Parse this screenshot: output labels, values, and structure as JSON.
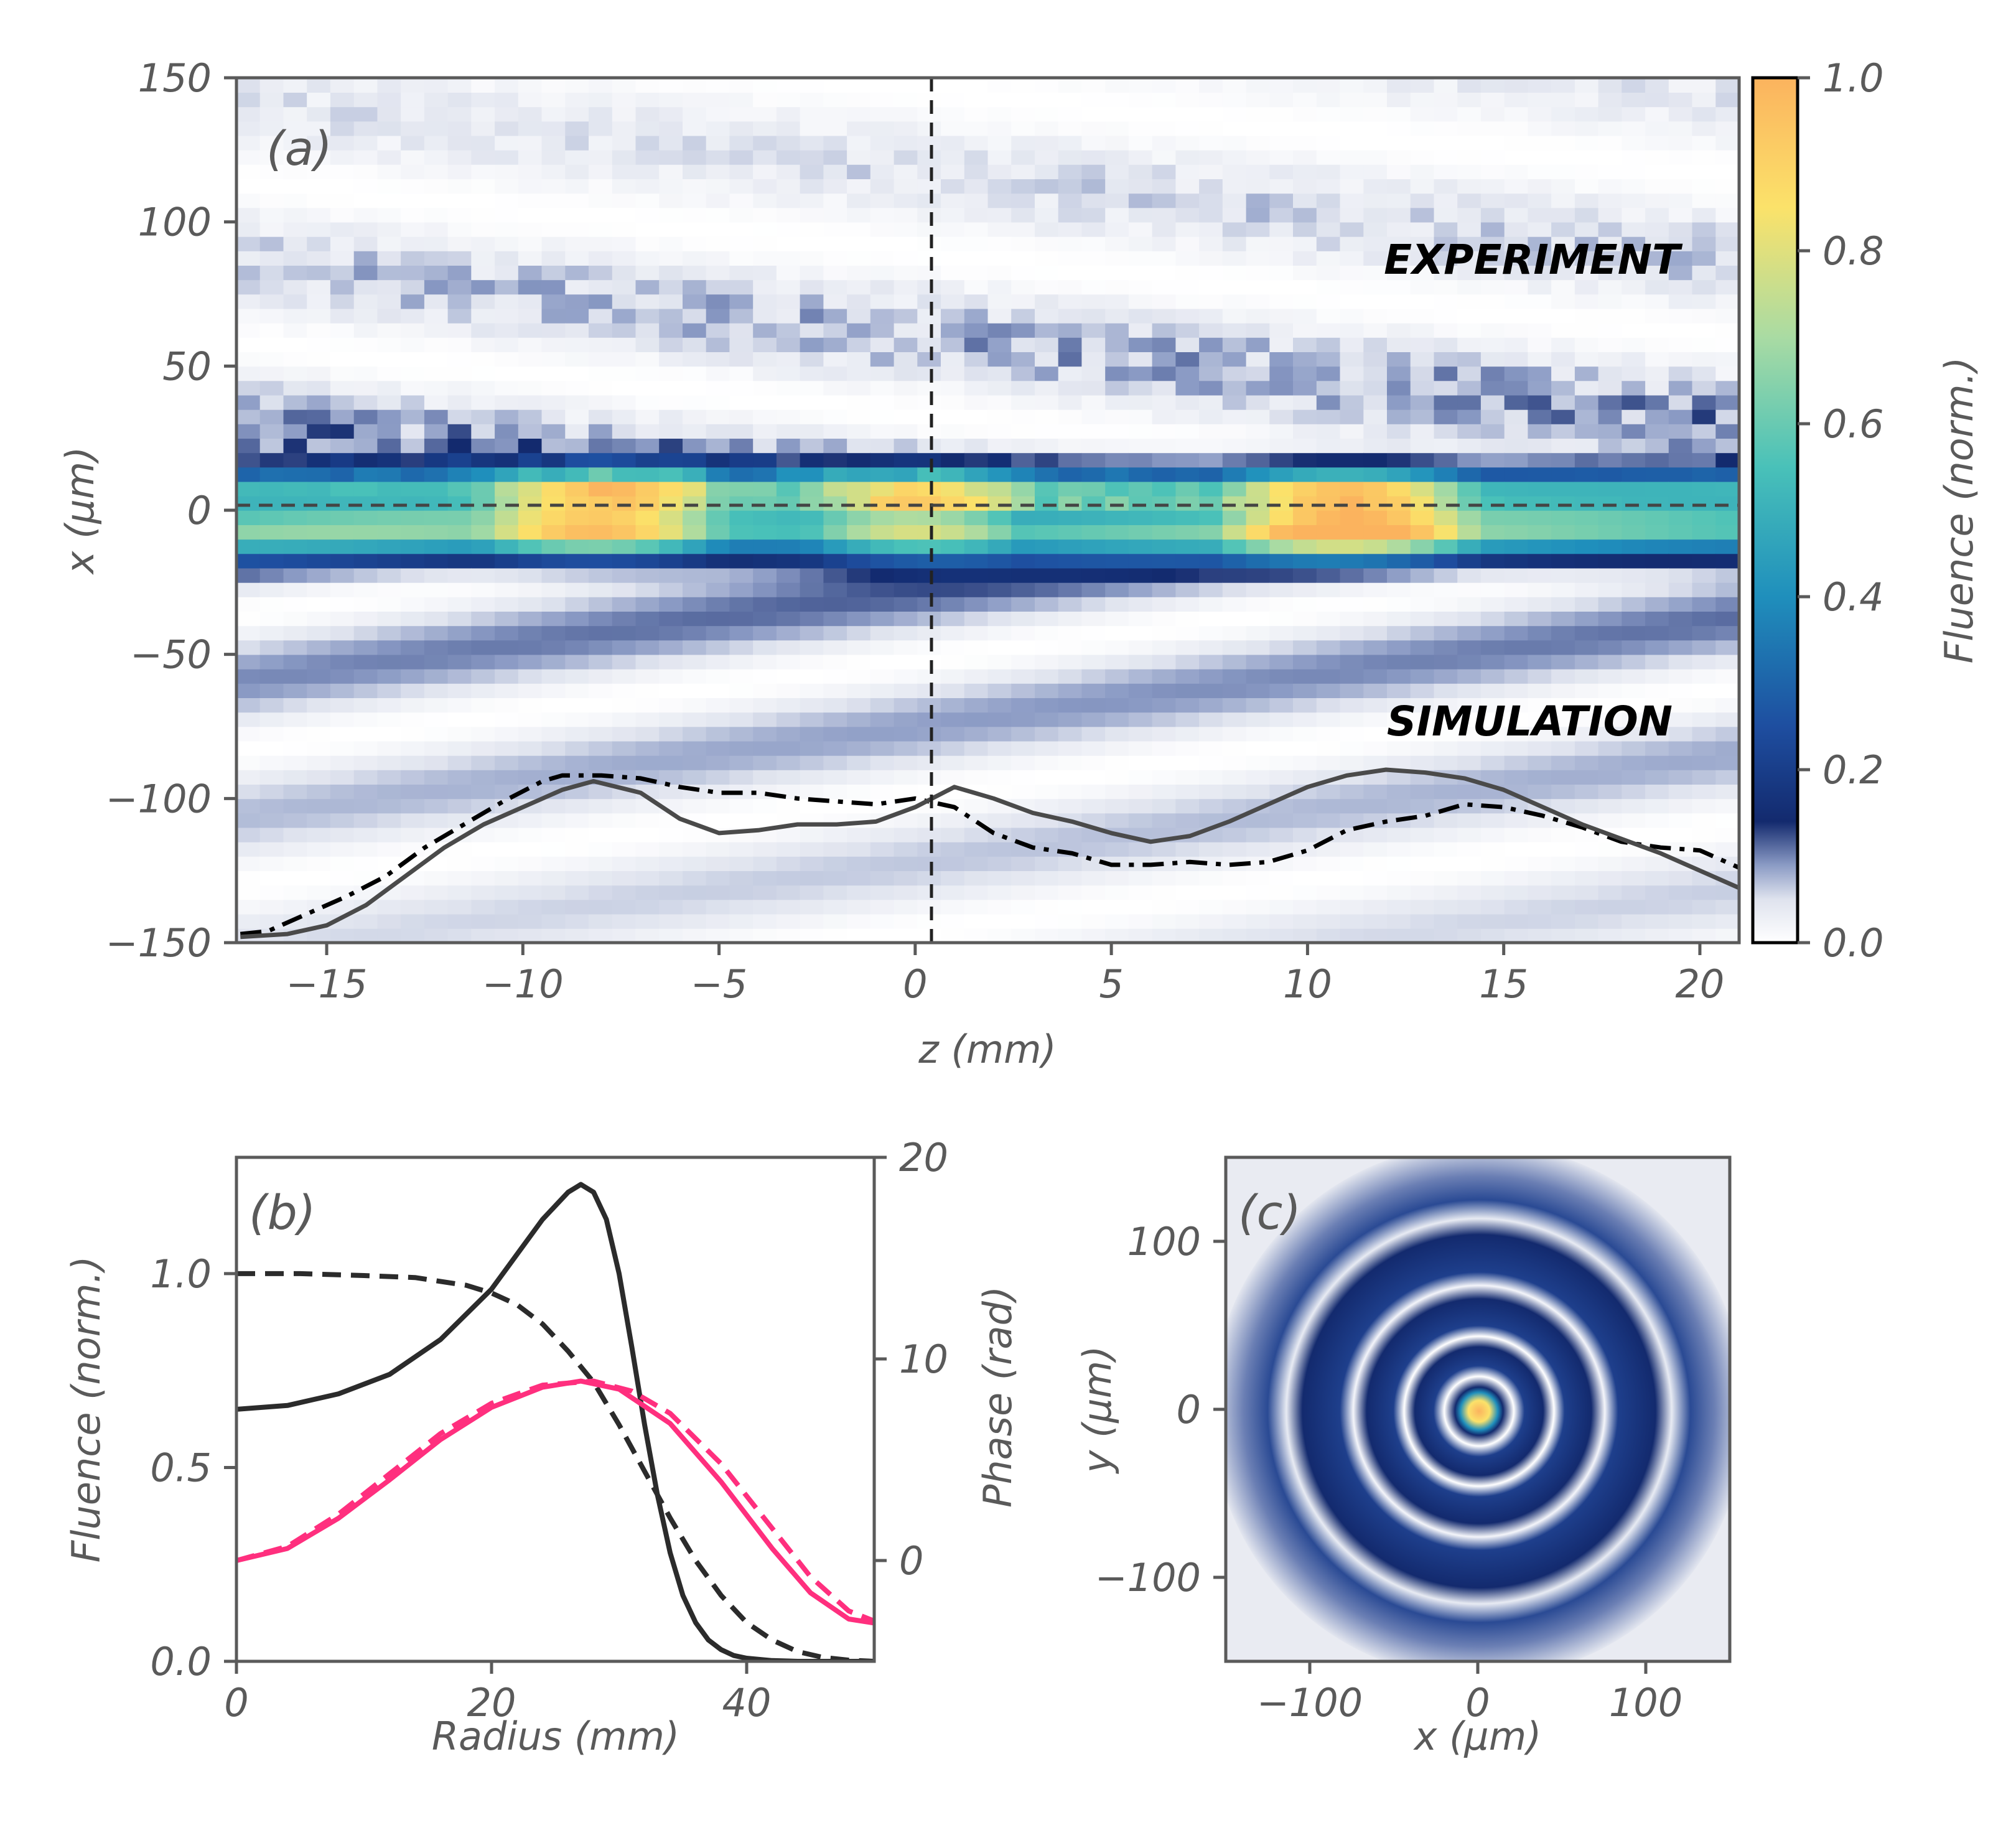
{
  "colors": {
    "axis": "#5a5a5a",
    "dark_line": "#2b2b2b",
    "pink": "#ff2f7e",
    "navy": "#132a6e",
    "gray_curve": "#4a4a4a"
  },
  "chart_data": [
    {
      "panel": "(a)",
      "type": "heatmap",
      "title": "",
      "xlabel": "z (mm)",
      "ylabel": "x (μm)",
      "xlim": [
        -17.3,
        21
      ],
      "ylim": [
        -150,
        150
      ],
      "xticks": [
        -15,
        -10,
        -5,
        0,
        5,
        10,
        15,
        20
      ],
      "xtick_labels": [
        "−15",
        "−10",
        "−5",
        "0",
        "5",
        "10",
        "15",
        "20"
      ],
      "yticks": [
        -150,
        -100,
        -50,
        0,
        50,
        100,
        150
      ],
      "ytick_labels": [
        "−150",
        "−100",
        "−50",
        "0",
        "50",
        "100",
        "150"
      ],
      "colorbar": {
        "label": "Fluence (norm.)",
        "range": [
          0,
          1
        ],
        "ticks": [
          0.0,
          0.2,
          0.4,
          0.6,
          0.8,
          1.0
        ],
        "tick_labels": [
          "0.0",
          "0.2",
          "0.4",
          "0.6",
          "0.8",
          "1.0"
        ],
        "colors": [
          "#ffffff",
          "#dfe3ee",
          "#8a9ac4",
          "#132a6e",
          "#1e4ea0",
          "#1f8fbc",
          "#49c1b9",
          "#a9dba3",
          "#fbe26a",
          "#fbb35e"
        ]
      },
      "annotations": [
        "EXPERIMENT",
        "SIMULATION"
      ],
      "reference_lines": {
        "vertical_z": 0.6,
        "horizontal_x": 0
      },
      "peak_bands": [
        {
          "region": "experiment",
          "center_x": 5,
          "sigma": 9,
          "peaks_z": [
            -8,
            0,
            11
          ],
          "peak_values": [
            0.95,
            0.85,
            1.0
          ]
        },
        {
          "region": "simulation",
          "center_x": -6,
          "sigma": 10,
          "peaks_z": [
            -8,
            0,
            11
          ],
          "peak_values": [
            0.92,
            0.8,
            1.0
          ]
        }
      ],
      "series": [
        {
          "name": "experiment on-axis fluence",
          "style": "dash-dot",
          "x": [
            -17.2,
            -16.5,
            -15.5,
            -14.5,
            -13.5,
            -12.5,
            -11.5,
            -10.5,
            -9.5,
            -9,
            -8,
            -7,
            -6,
            -5,
            -4,
            -3,
            -2,
            -1,
            0,
            1,
            2,
            3,
            4,
            5,
            6,
            7,
            8,
            9,
            10,
            11,
            12,
            13,
            14,
            15,
            16,
            17,
            18,
            19,
            20,
            21
          ],
          "y": [
            -147,
            -146,
            -140,
            -134,
            -127,
            -117,
            -109,
            -101,
            -94,
            -92,
            -92,
            -93,
            -96,
            -98,
            -98,
            -100,
            -101,
            -102,
            -100,
            -103,
            -112,
            -117,
            -119,
            -123,
            -123,
            -122,
            -123,
            -122,
            -118,
            -111,
            -108,
            -106,
            -102,
            -103,
            -106,
            -110,
            -115,
            -117,
            -118,
            -124
          ]
        },
        {
          "name": "simulation on-axis fluence",
          "style": "solid",
          "x": [
            -17.2,
            -16,
            -15,
            -14,
            -13,
            -12,
            -11,
            -10,
            -9,
            -8.2,
            -7,
            -6,
            -5,
            -4,
            -3,
            -2,
            -1,
            0,
            1,
            2,
            3,
            4,
            5,
            6,
            7,
            8,
            9,
            10,
            11,
            12,
            13,
            14,
            15,
            16,
            17,
            18,
            19,
            20,
            21
          ],
          "y": [
            -148,
            -147,
            -144,
            -137,
            -127,
            -117,
            -109,
            -103,
            -97,
            -94,
            -98,
            -107,
            -112,
            -111,
            -109,
            -109,
            -108,
            -103,
            -96,
            -100,
            -105,
            -108,
            -112,
            -115,
            -113,
            -108,
            -102,
            -96,
            -92,
            -90,
            -91,
            -93,
            -97,
            -103,
            -109,
            -114,
            -119,
            -125,
            -131
          ]
        }
      ]
    },
    {
      "panel": "(b)",
      "type": "line",
      "title": "",
      "xlabel": "Radius (mm)",
      "ylabel": "Fluence (norm.)",
      "y2label": "Phase (rad)",
      "xlim": [
        0,
        50
      ],
      "ylim": [
        0,
        1.3
      ],
      "y2lim": [
        -5,
        20
      ],
      "xticks": [
        0,
        20,
        40
      ],
      "xtick_labels": [
        "0",
        "20",
        "40"
      ],
      "yticks": [
        0.0,
        0.5,
        1.0
      ],
      "ytick_labels": [
        "0.0",
        "0.5",
        "1.0"
      ],
      "y2ticks": [
        0,
        10,
        20
      ],
      "y2tick_labels": [
        "0",
        "10",
        "20"
      ],
      "series": [
        {
          "name": "fluence solid",
          "color": "#2b2b2b",
          "style": "solid",
          "axis": "left",
          "x": [
            0,
            4,
            8,
            12,
            16,
            20,
            22,
            24,
            26,
            27,
            28,
            29,
            30,
            31,
            32,
            33,
            34,
            35,
            36,
            37,
            38,
            39,
            40,
            42,
            44,
            46,
            48,
            50
          ],
          "y": [
            0.65,
            0.66,
            0.69,
            0.74,
            0.83,
            0.96,
            1.05,
            1.14,
            1.21,
            1.23,
            1.21,
            1.14,
            1.0,
            0.81,
            0.61,
            0.43,
            0.28,
            0.17,
            0.1,
            0.055,
            0.03,
            0.015,
            0.008,
            0.002,
            0.0,
            0.0,
            0.0,
            0.0
          ]
        },
        {
          "name": "fluence dashed",
          "color": "#2b2b2b",
          "style": "dashed",
          "axis": "left",
          "x": [
            0,
            5,
            10,
            14,
            18,
            20,
            22,
            24,
            26,
            28,
            30,
            32,
            34,
            36,
            38,
            40,
            42,
            44,
            46,
            48,
            50
          ],
          "y": [
            1.0,
            1.0,
            0.995,
            0.99,
            0.97,
            0.95,
            0.92,
            0.87,
            0.8,
            0.72,
            0.61,
            0.49,
            0.37,
            0.26,
            0.17,
            0.1,
            0.055,
            0.025,
            0.01,
            0.003,
            0.0
          ]
        },
        {
          "name": "phase solid",
          "color": "#ff2f7e",
          "style": "solid",
          "axis": "right",
          "x": [
            0,
            4,
            8,
            12,
            16,
            20,
            24,
            27,
            30,
            34,
            38,
            42,
            45,
            48,
            50
          ],
          "y": [
            0,
            0.6,
            2.1,
            4.0,
            6.0,
            7.6,
            8.6,
            8.9,
            8.5,
            6.8,
            3.9,
            0.6,
            -1.6,
            -2.9,
            -3.1
          ]
        },
        {
          "name": "phase dashed",
          "color": "#ff2f7e",
          "style": "dashed",
          "axis": "right",
          "x": [
            0,
            4,
            8,
            12,
            16,
            20,
            24,
            28,
            31,
            34,
            38,
            42,
            45,
            48,
            50
          ],
          "y": [
            0,
            0.7,
            2.3,
            4.3,
            6.3,
            7.8,
            8.7,
            8.9,
            8.4,
            7.3,
            4.8,
            1.6,
            -0.8,
            -2.5,
            -3.0
          ]
        }
      ]
    },
    {
      "panel": "(c)",
      "type": "heatmap",
      "title": "",
      "xlabel": "x (μm)",
      "ylabel": "y (μm)",
      "xlim": [
        -150,
        150
      ],
      "ylim": [
        -150,
        150
      ],
      "xticks": [
        -100,
        0,
        100
      ],
      "xtick_labels": [
        "−100",
        "0",
        "100"
      ],
      "yticks": [
        -100,
        0,
        100
      ],
      "ytick_labels": [
        "−100",
        "0",
        "100"
      ],
      "rings_dark_radius_um": [
        12,
        33,
        58,
        92,
        135
      ],
      "rings_bright_radius_um": [
        22,
        45,
        73,
        112
      ],
      "center_peak": 1.0
    }
  ]
}
